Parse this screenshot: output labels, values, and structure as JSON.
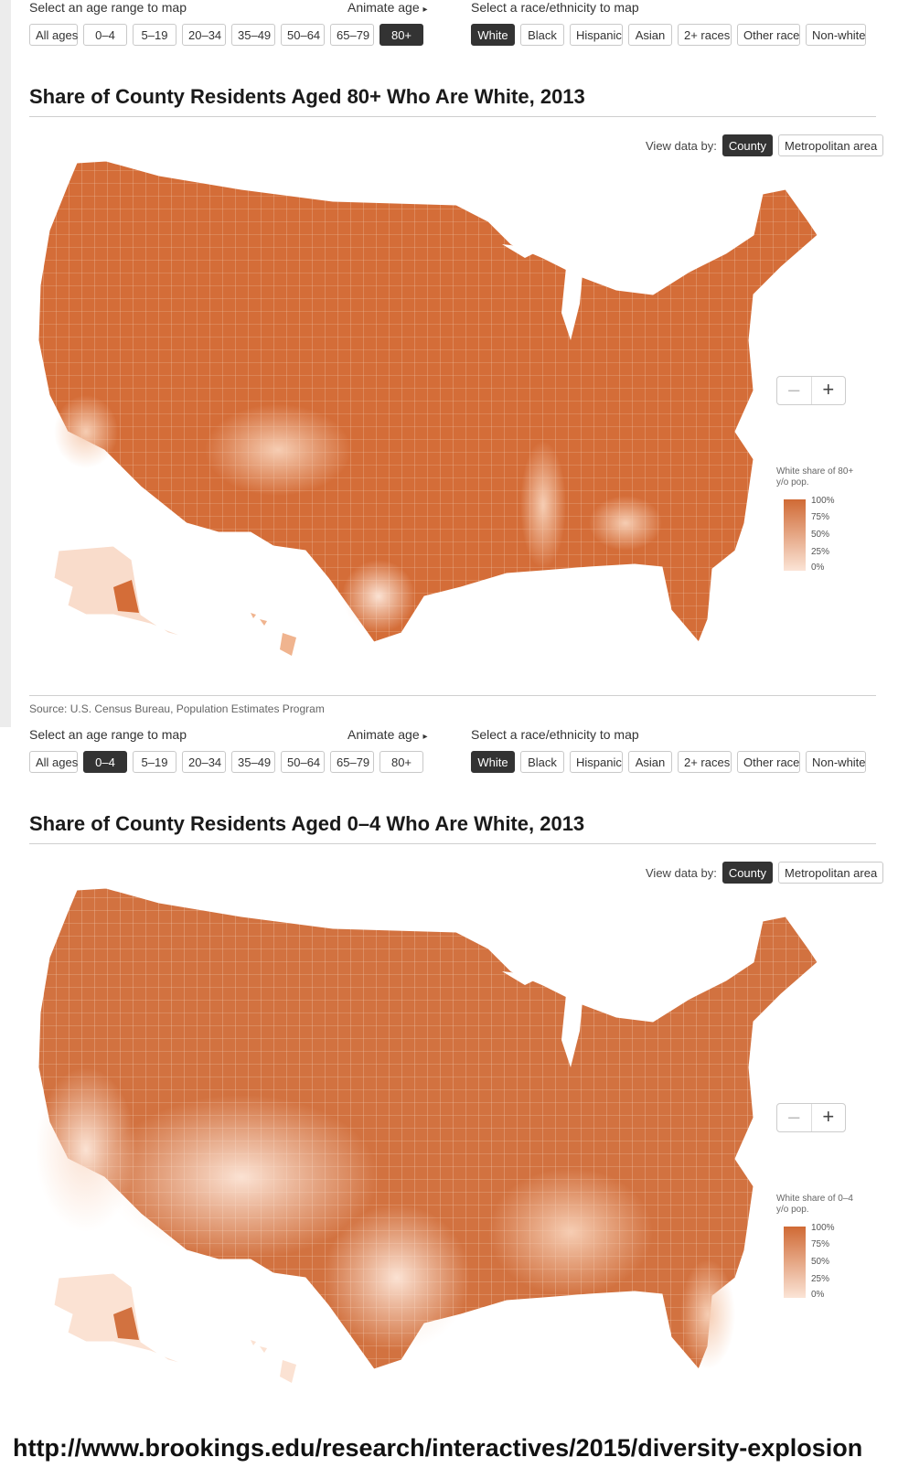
{
  "age_label": "Select an age range to map",
  "animate_label": "Animate age",
  "animate_arrow": "▸",
  "race_label": "Select a race/ethnicity to map",
  "age_options": [
    "All ages",
    "0–4",
    "5–19",
    "20–34",
    "35–49",
    "50–64",
    "65–79",
    "80+"
  ],
  "race_options": [
    "White",
    "Black",
    "Hispanic",
    "Asian",
    "2+ races",
    "Other race",
    "Non-white"
  ],
  "view_by_label": "View data by:",
  "view_options": [
    "County",
    "Metropolitan area"
  ],
  "zoom_out": "–",
  "zoom_in": "+",
  "legend_ticks": [
    "100%",
    "75%",
    "50%",
    "25%",
    "0%"
  ],
  "colors": {
    "high": "#d06a35",
    "low": "#fbe4d6",
    "selected": "#333333"
  },
  "panels": [
    {
      "selected_age": "80+",
      "selected_race": "White",
      "selected_view": "County",
      "title": "Share of County Residents Aged 80+ Who Are White, 2013",
      "legend_title": "White share of 80+ y/o pop.",
      "overall_shading": "predominantly high (dark orange) nationwide; lighter in south Texas, New Mexico, Arizona border and Mississippi delta"
    },
    {
      "selected_age": "0–4",
      "selected_race": "White",
      "selected_view": "County",
      "title": "Share of County Residents Aged 0–4 Who Are White, 2013",
      "legend_title": "White share of 0–4 y/o pop.",
      "overall_shading": "lighter across the Southwest, California, Texas, Florida and the Deep South; dark in the northern interior and New England"
    }
  ],
  "source": "Source: U.S. Census Bureau, Population Estimates Program",
  "url": "http://www.brookings.edu/research/interactives/2015/diversity-explosion"
}
